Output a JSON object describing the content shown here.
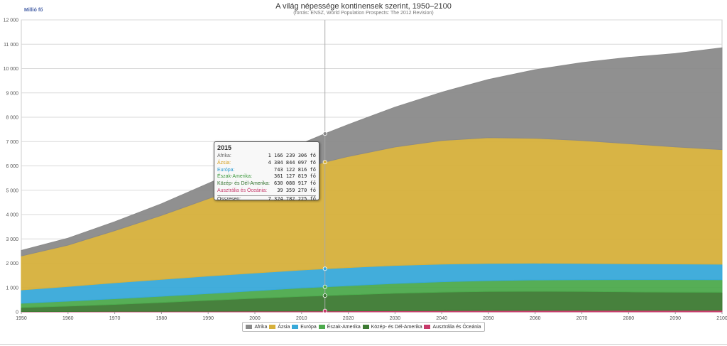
{
  "chart_data": {
    "type": "area",
    "stacked": true,
    "title": "A világ népessége kontinensek szerint, 1950–2100",
    "subtitle": "(forrás: ENSZ, World Population Prospects: The 2012 Revision)",
    "ylabel": "Millió fő",
    "xlim": [
      1950,
      2100
    ],
    "ylim": [
      0,
      12000
    ],
    "x_ticks": [
      "1950",
      "1960",
      "1970",
      "1980",
      "1990",
      "2000",
      "2010",
      "2020",
      "2030",
      "2040",
      "2050",
      "2060",
      "2070",
      "2080",
      "2090",
      "2100"
    ],
    "y_ticks": [
      "0",
      "1 000",
      "2 000",
      "3 000",
      "4 000",
      "5 000",
      "6 000",
      "7 000",
      "8 000",
      "9 000",
      "10 000",
      "11 000",
      "12 000"
    ],
    "grid": true,
    "legend_position": "bottom-center",
    "x": [
      1950,
      1960,
      1970,
      1980,
      1990,
      2000,
      2010,
      2015,
      2020,
      2030,
      2040,
      2050,
      2060,
      2070,
      2080,
      2090,
      2100
    ],
    "series": [
      {
        "name": "Ausztrália és Óceánia",
        "color": "#c73a6a",
        "values": [
          13,
          16,
          20,
          23,
          27,
          31,
          37,
          39,
          42,
          47,
          52,
          57,
          61,
          64,
          66,
          68,
          70
        ]
      },
      {
        "name": "Közép- és Dél-Amerika",
        "color": "#3d7a33",
        "values": [
          168,
          220,
          288,
          364,
          446,
          526,
          600,
          630,
          661,
          718,
          760,
          782,
          785,
          775,
          758,
          740,
          736
        ]
      },
      {
        "name": "Észak-Amerika",
        "color": "#4daa4d",
        "values": [
          172,
          204,
          231,
          254,
          280,
          313,
          346,
          361,
          375,
          403,
          426,
          446,
          467,
          485,
          502,
          518,
          513
        ]
      },
      {
        "name": "Európa",
        "color": "#38a9d9",
        "values": [
          549,
          605,
          657,
          694,
          721,
          726,
          740,
          743,
          744,
          741,
          728,
          709,
          689,
          670,
          653,
          645,
          639
        ]
      },
      {
        "name": "Ázsia",
        "color": "#d6b03b",
        "values": [
          1396,
          1700,
          2143,
          2630,
          3176,
          3717,
          4165,
          4385,
          4565,
          4869,
          5079,
          5164,
          5135,
          5050,
          4935,
          4810,
          4712
        ]
      },
      {
        "name": "Afrika",
        "color": "#8a8a8a",
        "values": [
          229,
          285,
          367,
          478,
          630,
          808,
          1031,
          1166,
          1312,
          1636,
          1983,
          2393,
          2815,
          3200,
          3543,
          3836,
          4185
        ]
      }
    ],
    "legend_order": [
      "Afrika",
      "Ázsia",
      "Európa",
      "Észak-Amerika",
      "Közép- és Dél-Amerika",
      "Ausztrália és Óceánia"
    ],
    "tooltip": {
      "year": "2015",
      "rows": [
        {
          "label": "Afrika:",
          "value": "1 166 239 306 fő",
          "color": "#666666"
        },
        {
          "label": "Ázsia:",
          "value": "4 384 844 097 fő",
          "color": "#d6a020"
        },
        {
          "label": "Európa:",
          "value": "743 122 816 fő",
          "color": "#2a9bd0"
        },
        {
          "label": "Észak-Amerika:",
          "value": "361 127 819 fő",
          "color": "#3e9a3e"
        },
        {
          "label": "Közép- és Dél-Amerika:",
          "value": "630 088 917 fő",
          "color": "#2f6f2a"
        },
        {
          "label": "Ausztrália és Óceánia:",
          "value": "39 359 270 fő",
          "color": "#c73a6a"
        }
      ],
      "total_label": "Összesen:",
      "total_value": "7 324 782 225 fő"
    }
  }
}
